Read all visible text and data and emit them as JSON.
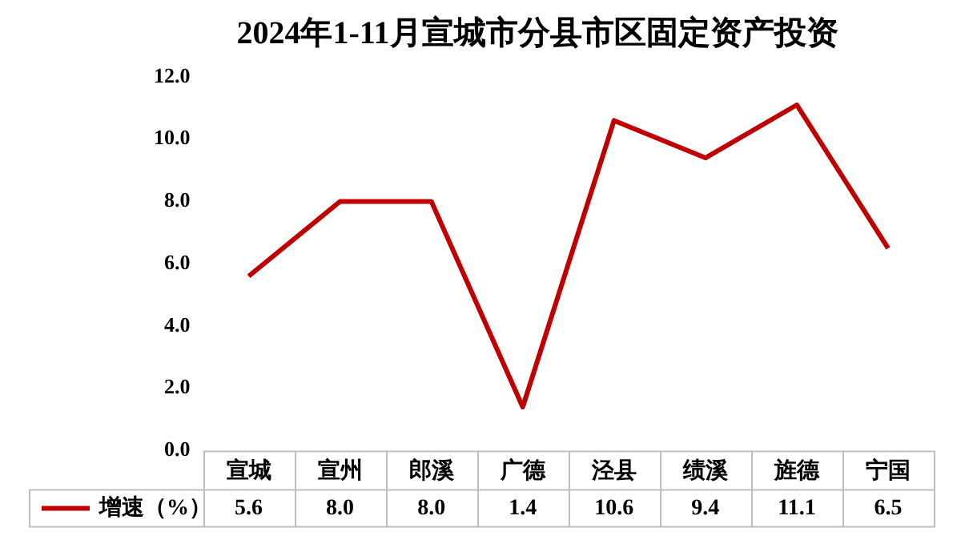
{
  "chart_data": {
    "type": "line",
    "title": "2024年1-11月宣城市分县市区固定资产投资",
    "categories": [
      "宣城",
      "宣州",
      "郎溪",
      "广德",
      "泾县",
      "绩溪",
      "旌德",
      "宁国"
    ],
    "series": [
      {
        "name": "增速（%）",
        "color": "#c00000",
        "values": [
          5.6,
          8.0,
          8.0,
          1.4,
          10.6,
          9.4,
          11.1,
          6.5
        ],
        "value_labels": [
          "5.6",
          "8.0",
          "8.0",
          "1.4",
          "10.6",
          "9.4",
          "11.1",
          "6.5"
        ]
      }
    ],
    "ylim": [
      0,
      12
    ],
    "yticks": [
      {
        "value": 0,
        "label": "0.0"
      },
      {
        "value": 2,
        "label": "2.0"
      },
      {
        "value": 4,
        "label": "4.0"
      },
      {
        "value": 6,
        "label": "6.0"
      },
      {
        "value": 8,
        "label": "8.0"
      },
      {
        "value": 10,
        "label": "10.0"
      },
      {
        "value": 12,
        "label": "12.0"
      }
    ],
    "grid": false,
    "legend": "bottom",
    "marker": "none",
    "line_style": "solid"
  }
}
